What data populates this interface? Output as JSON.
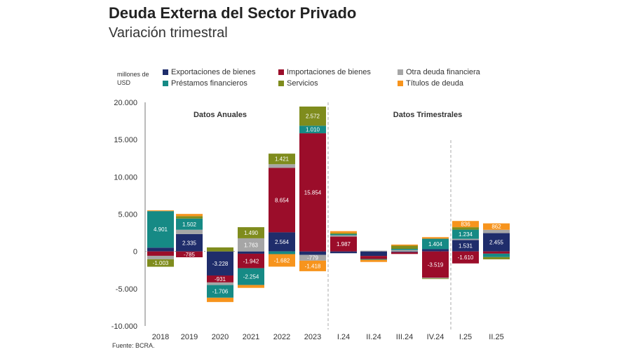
{
  "title": "Deuda Externa del Sector Privado",
  "subtitle": "Variación trimestral",
  "source": "Fuente: BCRA.",
  "chart_data": {
    "type": "bar",
    "stacked": true,
    "ylabel": "millones de USD",
    "ylim": [
      -10000,
      20000
    ],
    "yticks": [
      "20.000",
      "15.000",
      "10.000",
      "5.000",
      "0",
      "-5.000",
      "-10.000"
    ],
    "ytick_values": [
      20000,
      15000,
      10000,
      5000,
      0,
      -5000,
      -10000
    ],
    "categories": [
      "2018",
      "2019",
      "2020",
      "2021",
      "2022",
      "2023",
      "I.24",
      "II.24",
      "III.24",
      "IV.24",
      "I.25",
      "II.25"
    ],
    "annotations": [
      "Datos Anuales",
      "Datos Trimestrales"
    ],
    "legend_position": "top",
    "grid": false,
    "series": [
      {
        "name": "Exportaciones de bienes",
        "color": "#1f2d6b",
        "values": [
          507,
          2335,
          -3228,
          -309,
          2564,
          -459,
          -242,
          -608,
          -100,
          300,
          1531,
          2455
        ]
      },
      {
        "name": "Importaciones de bienes",
        "color": "#9b0d2a",
        "values": [
          -590,
          -785,
          -931,
          -1942,
          8654,
          15854,
          1987,
          -407,
          -242,
          -3519,
          -1610,
          -300
        ]
      },
      {
        "name": "Otra deuda financiera",
        "color": "#a6a6a6",
        "values": [
          -463,
          571,
          -349,
          1763,
          481,
          -779,
          187,
          100,
          194,
          -114,
          159,
          447
        ]
      },
      {
        "name": "Préstamos financieros",
        "color": "#168a85",
        "values": [
          4901,
          1502,
          -1706,
          -2254,
          -362,
          1010,
          150,
          -100,
          150,
          1404,
          1234,
          -464
        ]
      },
      {
        "name": "Servicios",
        "color": "#7f8c1d",
        "values": [
          -1003,
          323,
          540,
          1490,
          1421,
          2572,
          150,
          0,
          426,
          -75,
          325,
          -295
        ]
      },
      {
        "name": "Títulos de deuda",
        "color": "#f7941d",
        "values": [
          100,
          300,
          -575,
          -385,
          -1682,
          -1418,
          250,
          -300,
          150,
          212,
          836,
          862
        ]
      }
    ]
  }
}
